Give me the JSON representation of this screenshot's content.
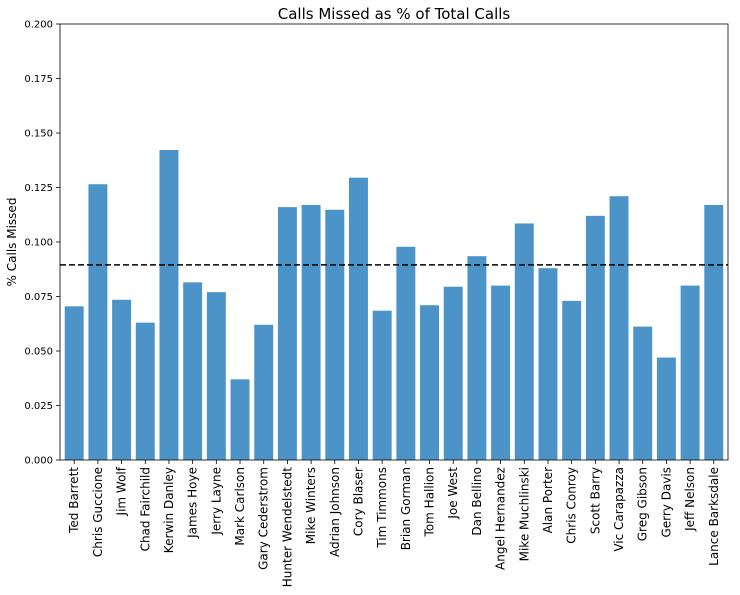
{
  "chart_data": {
    "type": "bar",
    "title": "Calls Missed as % of Total Calls",
    "xlabel": "",
    "ylabel": "% Calls Missed",
    "ylim": [
      0,
      0.2
    ],
    "yticks": [
      "0.000",
      "0.025",
      "0.050",
      "0.075",
      "0.100",
      "0.125",
      "0.150",
      "0.175",
      "0.200"
    ],
    "categories": [
      "Ted Barrett",
      "Chris Guccione",
      "Jim Wolf",
      "Chad Fairchild",
      "Kerwin Danley",
      "James Hoye",
      "Jerry Layne",
      "Mark Carlson",
      "Gary Cederstrom",
      "Hunter Wendelstedt",
      "Mike Winters",
      "Adrian Johnson",
      "Cory Blaser",
      "Tim Timmons",
      "Brian Gorman",
      "Tom Hallion",
      "Joe West",
      "Dan Bellino",
      "Angel Hernandez",
      "Mike Muchlinski",
      "Alan Porter",
      "Chris Conroy",
      "Scott Barry",
      "Vic Carapazza",
      "Greg Gibson",
      "Gerry Davis",
      "Jeff Nelson",
      "Lance Barksdale"
    ],
    "values": [
      0.0705,
      0.1265,
      0.0735,
      0.063,
      0.1422,
      0.0815,
      0.077,
      0.037,
      0.062,
      0.116,
      0.117,
      0.1148,
      0.1295,
      0.0685,
      0.0978,
      0.071,
      0.0795,
      0.0935,
      0.08,
      0.1085,
      0.088,
      0.073,
      0.112,
      0.121,
      0.0612,
      0.047,
      0.08,
      0.117
    ],
    "reference_line": {
      "value": 0.0895,
      "style": "dashed"
    },
    "bar_color": "#4c94c8",
    "grid": false
  }
}
